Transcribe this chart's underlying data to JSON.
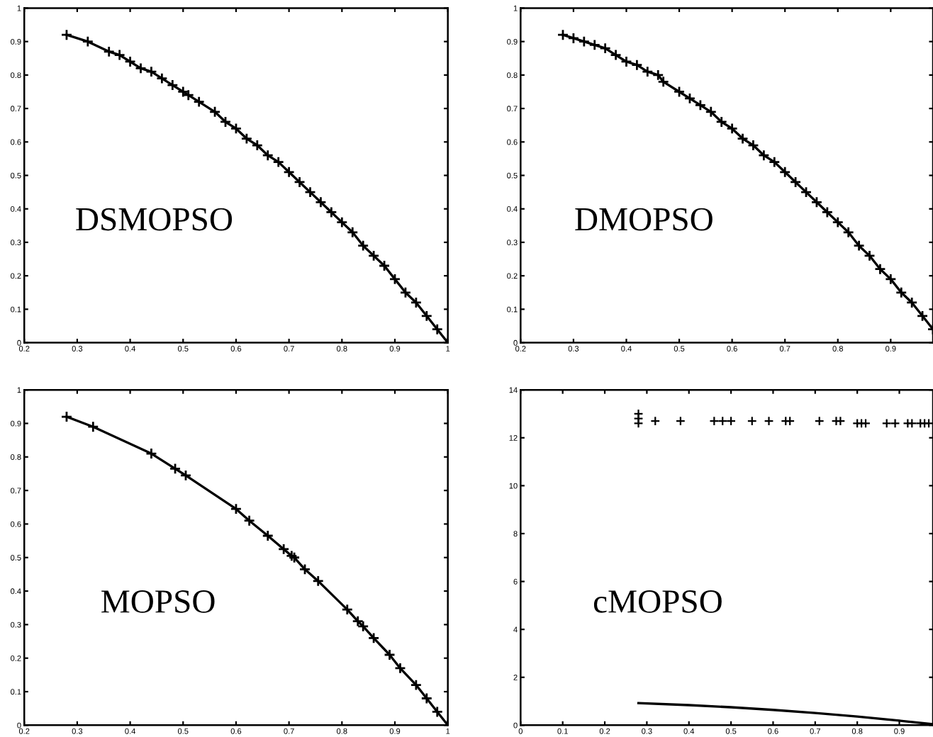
{
  "chart_data": [
    {
      "type": "line",
      "annotations": [
        "DSMOPSO"
      ],
      "xlim": [
        0.2,
        1
      ],
      "ylim": [
        0,
        1
      ],
      "xticks": [
        0.2,
        0.3,
        0.4,
        0.5,
        0.6,
        0.7,
        0.8,
        0.9,
        1
      ],
      "yticks": [
        0,
        0.1,
        0.2,
        0.3,
        0.4,
        0.5,
        0.6,
        0.7,
        0.8,
        0.9,
        1
      ],
      "series": [
        {
          "color": "#000000",
          "marker": "cross",
          "line_style": "solid",
          "x": [
            0.28,
            0.32,
            0.36,
            0.38,
            0.4,
            0.42,
            0.44,
            0.46,
            0.48,
            0.5,
            0.51,
            0.53,
            0.56,
            0.58,
            0.6,
            0.62,
            0.64,
            0.66,
            0.68,
            0.7,
            0.72,
            0.74,
            0.76,
            0.78,
            0.8,
            0.82,
            0.84,
            0.86,
            0.88,
            0.9,
            0.92,
            0.94,
            0.96,
            0.98,
            1.0
          ],
          "values": [
            0.92,
            0.9,
            0.87,
            0.86,
            0.84,
            0.82,
            0.81,
            0.79,
            0.77,
            0.75,
            0.74,
            0.72,
            0.69,
            0.66,
            0.64,
            0.61,
            0.59,
            0.56,
            0.54,
            0.51,
            0.48,
            0.45,
            0.42,
            0.39,
            0.36,
            0.33,
            0.29,
            0.26,
            0.23,
            0.19,
            0.15,
            0.12,
            0.08,
            0.04,
            0.0
          ]
        }
      ]
    },
    {
      "type": "line",
      "annotations": [
        "DMOPSO"
      ],
      "xlim": [
        0.2,
        0.98
      ],
      "ylim": [
        0,
        1
      ],
      "xticks": [
        0.2,
        0.3,
        0.4,
        0.5,
        0.6,
        0.7,
        0.8,
        0.9
      ],
      "yticks": [
        0,
        0.1,
        0.2,
        0.3,
        0.4,
        0.5,
        0.6,
        0.7,
        0.8,
        0.9,
        1
      ],
      "series": [
        {
          "color": "#000000",
          "marker": "cross",
          "line_style": "solid",
          "x": [
            0.28,
            0.3,
            0.32,
            0.34,
            0.36,
            0.38,
            0.4,
            0.42,
            0.44,
            0.46,
            0.47,
            0.5,
            0.52,
            0.54,
            0.56,
            0.58,
            0.6,
            0.62,
            0.64,
            0.66,
            0.68,
            0.7,
            0.72,
            0.74,
            0.76,
            0.78,
            0.8,
            0.82,
            0.84,
            0.86,
            0.88,
            0.9,
            0.92,
            0.94,
            0.96,
            0.98
          ],
          "values": [
            0.92,
            0.91,
            0.9,
            0.89,
            0.88,
            0.86,
            0.84,
            0.83,
            0.81,
            0.8,
            0.78,
            0.75,
            0.73,
            0.71,
            0.69,
            0.66,
            0.64,
            0.61,
            0.59,
            0.56,
            0.54,
            0.51,
            0.48,
            0.45,
            0.42,
            0.39,
            0.36,
            0.33,
            0.29,
            0.26,
            0.22,
            0.19,
            0.15,
            0.12,
            0.08,
            0.04
          ]
        }
      ]
    },
    {
      "type": "line",
      "annotations": [
        "MOPSO"
      ],
      "xlim": [
        0.2,
        1
      ],
      "ylim": [
        0,
        1
      ],
      "xticks": [
        0.2,
        0.3,
        0.4,
        0.5,
        0.6,
        0.7,
        0.8,
        0.9,
        1
      ],
      "yticks": [
        0,
        0.1,
        0.2,
        0.3,
        0.4,
        0.5,
        0.6,
        0.7,
        0.8,
        0.9,
        1
      ],
      "series": [
        {
          "color": "#000000",
          "marker": "cross",
          "line_style": "solid",
          "x": [
            0.28,
            0.33,
            0.44,
            0.485,
            0.505,
            0.6,
            0.625,
            0.66,
            0.69,
            0.705,
            0.71,
            0.73,
            0.755,
            0.81,
            0.83,
            0.84,
            0.86,
            0.89,
            0.91,
            0.94,
            0.96,
            0.98,
            1.0
          ],
          "values": [
            0.92,
            0.89,
            0.81,
            0.765,
            0.745,
            0.645,
            0.61,
            0.565,
            0.525,
            0.505,
            0.5,
            0.465,
            0.43,
            0.345,
            0.31,
            0.295,
            0.26,
            0.21,
            0.17,
            0.12,
            0.08,
            0.04,
            0.0
          ]
        }
      ]
    },
    {
      "type": "scatter",
      "annotations": [
        "cMOPSO"
      ],
      "xlim": [
        0,
        0.98
      ],
      "ylim": [
        0,
        14
      ],
      "xticks": [
        0,
        0.1,
        0.2,
        0.3,
        0.4,
        0.5,
        0.6,
        0.7,
        0.8,
        0.9
      ],
      "yticks": [
        0,
        2,
        4,
        6,
        8,
        10,
        12,
        14
      ],
      "series": [
        {
          "type": "line",
          "color": "#000000",
          "line_style": "solid",
          "x": [
            0.28,
            0.4,
            0.5,
            0.6,
            0.7,
            0.8,
            0.9,
            0.98
          ],
          "values": [
            0.92,
            0.84,
            0.75,
            0.64,
            0.51,
            0.36,
            0.19,
            0.04
          ]
        },
        {
          "color": "#000000",
          "marker": "cross",
          "x": [
            0.28,
            0.28,
            0.28,
            0.32,
            0.38,
            0.46,
            0.48,
            0.5,
            0.55,
            0.59,
            0.63,
            0.64,
            0.71,
            0.75,
            0.76,
            0.8,
            0.81,
            0.82,
            0.87,
            0.89,
            0.92,
            0.93,
            0.95,
            0.96,
            0.97
          ],
          "values": [
            13.0,
            12.8,
            12.6,
            12.7,
            12.7,
            12.7,
            12.7,
            12.7,
            12.7,
            12.7,
            12.7,
            12.7,
            12.7,
            12.7,
            12.7,
            12.6,
            12.6,
            12.6,
            12.6,
            12.6,
            12.6,
            12.6,
            12.6,
            12.6,
            12.6
          ]
        }
      ]
    }
  ]
}
